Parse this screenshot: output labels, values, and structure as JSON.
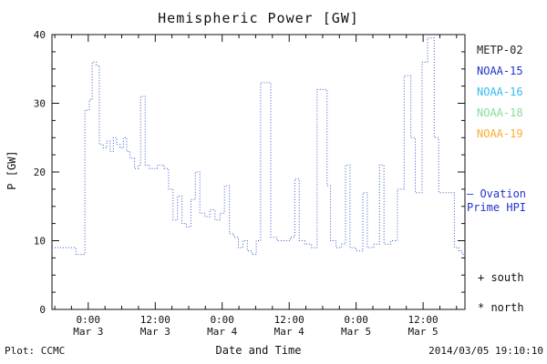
{
  "chart_data": {
    "type": "line",
    "title": "Hemispheric Power [GW]",
    "xlabel": "Date and Time",
    "ylabel": "P [GW]",
    "xlim": [
      -6.5,
      67.5
    ],
    "ylim": [
      0,
      40
    ],
    "x_unit": "hours since Mar 3 00:00",
    "grid": false,
    "line_style": "dotted-step",
    "yticks": [
      0,
      10,
      20,
      30,
      40
    ],
    "xticks": [
      {
        "t": 0,
        "time": "0:00",
        "date": "Mar 3"
      },
      {
        "t": 12,
        "time": "12:00",
        "date": "Mar 3"
      },
      {
        "t": 24,
        "time": "0:00",
        "date": "Mar 4"
      },
      {
        "t": 36,
        "time": "12:00",
        "date": "Mar 4"
      },
      {
        "t": 48,
        "time": "0:00",
        "date": "Mar 5"
      },
      {
        "t": 60,
        "time": "12:00",
        "date": "Mar 5"
      }
    ],
    "series": [
      {
        "name": "Ovation Prime HPI",
        "color": "#3355cc",
        "steps": [
          [
            -6.5,
            9
          ],
          [
            -3.5,
            9
          ],
          [
            -2.2,
            8
          ],
          [
            -0.8,
            8
          ],
          [
            -0.6,
            29
          ],
          [
            0.2,
            30.5
          ],
          [
            0.7,
            36
          ],
          [
            1.4,
            35.5
          ],
          [
            2.0,
            24
          ],
          [
            2.7,
            23.5
          ],
          [
            3.3,
            24.5
          ],
          [
            3.9,
            23
          ],
          [
            4.5,
            25
          ],
          [
            5.1,
            24
          ],
          [
            5.7,
            23.5
          ],
          [
            6.3,
            25
          ],
          [
            6.9,
            23
          ],
          [
            7.5,
            22
          ],
          [
            8.3,
            20.5
          ],
          [
            9.0,
            21
          ],
          [
            9.4,
            31
          ],
          [
            10.2,
            21
          ],
          [
            11.0,
            20.5
          ],
          [
            12.4,
            21
          ],
          [
            13.6,
            20.5
          ],
          [
            14.4,
            17.5
          ],
          [
            15.2,
            13
          ],
          [
            16.0,
            16.5
          ],
          [
            16.8,
            12.5
          ],
          [
            17.6,
            12
          ],
          [
            18.4,
            16
          ],
          [
            19.2,
            20
          ],
          [
            20.0,
            14
          ],
          [
            20.9,
            13.5
          ],
          [
            21.8,
            14.5
          ],
          [
            22.7,
            13
          ],
          [
            23.6,
            14
          ],
          [
            24.4,
            18
          ],
          [
            25.3,
            11
          ],
          [
            26.1,
            10.5
          ],
          [
            26.9,
            9
          ],
          [
            27.7,
            10
          ],
          [
            28.5,
            8.5
          ],
          [
            29.3,
            8
          ],
          [
            30.1,
            10
          ],
          [
            30.9,
            33
          ],
          [
            32.1,
            33
          ],
          [
            32.7,
            10.5
          ],
          [
            33.8,
            10
          ],
          [
            35.0,
            10
          ],
          [
            36.2,
            10.5
          ],
          [
            37.0,
            19
          ],
          [
            37.8,
            10
          ],
          [
            38.8,
            9.5
          ],
          [
            40.0,
            9
          ],
          [
            41.0,
            32
          ],
          [
            42.2,
            32
          ],
          [
            42.8,
            18
          ],
          [
            43.4,
            10
          ],
          [
            44.4,
            9
          ],
          [
            45.4,
            9.5
          ],
          [
            46.1,
            21
          ],
          [
            46.9,
            9
          ],
          [
            48.0,
            8.5
          ],
          [
            49.2,
            17
          ],
          [
            50.0,
            9
          ],
          [
            51.2,
            9.5
          ],
          [
            52.2,
            21
          ],
          [
            53.0,
            9.5
          ],
          [
            54.2,
            10
          ],
          [
            55.4,
            17.5
          ],
          [
            56.6,
            34
          ],
          [
            57.8,
            25
          ],
          [
            58.6,
            17
          ],
          [
            59.8,
            36
          ],
          [
            60.8,
            39.5
          ],
          [
            62.0,
            25
          ],
          [
            62.8,
            17
          ],
          [
            64.6,
            17
          ],
          [
            65.6,
            9
          ],
          [
            66.4,
            8.5
          ],
          [
            67.0,
            8
          ]
        ]
      }
    ]
  },
  "legend": {
    "items": [
      {
        "label": "METP-02",
        "color": "#222222"
      },
      {
        "label": "NOAA-15",
        "color": "#2233cc"
      },
      {
        "label": "NOAA-16",
        "color": "#33bbee"
      },
      {
        "label": "NOAA-18",
        "color": "#88dd99"
      },
      {
        "label": "NOAA-19",
        "color": "#ffaa33"
      }
    ]
  },
  "annotations": {
    "ovation": "— Ovation\nPrime HPI",
    "ovation_color": "#2233cc",
    "south_marker": "+ south",
    "north_marker": "* north"
  },
  "footer": {
    "plot_credit": "Plot: CCMC",
    "timestamp": "2014/03/05 19:10:10"
  }
}
